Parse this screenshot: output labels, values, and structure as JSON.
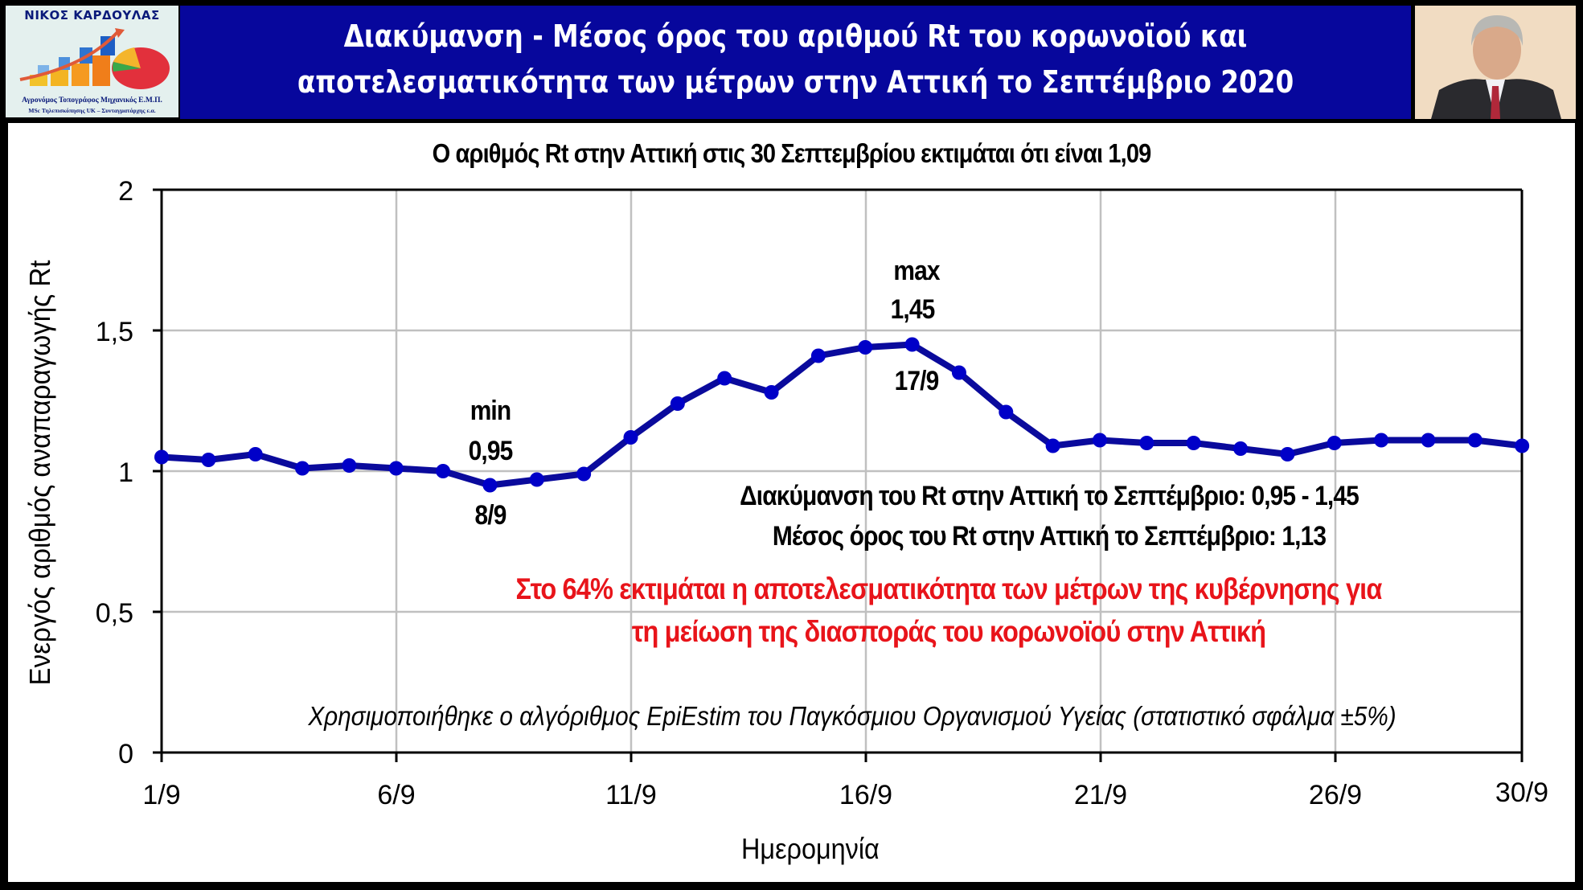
{
  "header": {
    "logo": {
      "name": "ΝΙΚΟΣ ΚΑΡΔΟΥΛΑΣ",
      "subtitle_line1": "Αγρονόμος Τοπογράφος Μηχανικός Ε.Μ.Π.",
      "subtitle_line2": "MSc Τηλεπισκόπησης UK – Συνταγματάρχης ε.α."
    },
    "title_line1": "Διακύμανση - Μέσος όρος του αριθμού Rt του κορωνοϊού και",
    "title_line2": "αποτελεσματικότητα των μέτρων στην Αττική το Σεπτέμβριο 2020",
    "colors": {
      "band": "#07079c",
      "title_text": "#ffffff"
    }
  },
  "chart": {
    "subtitle": "Ο αριθμός Rt στην Αττική στις 30 Σεπτεμβρίου εκτιμάται ότι είναι 1,09",
    "annotations": {
      "min_label": "min",
      "min_value": "0,95",
      "min_date": "8/9",
      "max_label": "max",
      "max_value": "1,45",
      "max_date": "17/9",
      "range_text": "Διακύμανση του Rt στην Αττική το Σεπτέμβριο: 0,95 -  1,45",
      "mean_text": "Μέσος όρος του Rt στην Αττική το Σεπτέμβριο: 1,13",
      "effectiveness_line1": "Στο 64% εκτιμάται η αποτελεσματικότητα των μέτρων της κυβέρνησης για",
      "effectiveness_line2": "τη μείωση της διασποράς του κορωνοϊού στην Αττική",
      "method_note": "Χρησιμοποιήθηκε ο αλγόριθμος EpiEstim του Παγκόσμιου Οργανισμού Υγείας (στατιστικό σφάλμα ±5%)"
    },
    "colors": {
      "line": "#0a0a9c",
      "marker": "#0000c8",
      "highlight_text": "#e8141a",
      "grid": "#c0c0c0"
    }
  },
  "chart_data": {
    "type": "line",
    "title": "Ο αριθμός Rt στην Αττική στις 30 Σεπτεμβρίου εκτιμάται ότι είναι 1,09",
    "xlabel": "Ημερομηνία",
    "ylabel": "Ενεργός αριθμός αναπαραγωγής Rt",
    "ylim": [
      0,
      2
    ],
    "yticks": [
      "0",
      "0,5",
      "1",
      "1,5",
      "2"
    ],
    "xticks": [
      "1/9",
      "6/9",
      "11/9",
      "16/9",
      "21/9",
      "26/9",
      "30/9"
    ],
    "grid": true,
    "legend": null,
    "x": [
      "1/9",
      "2/9",
      "3/9",
      "4/9",
      "5/9",
      "6/9",
      "7/9",
      "8/9",
      "9/9",
      "10/9",
      "11/9",
      "12/9",
      "13/9",
      "14/9",
      "15/9",
      "16/9",
      "17/9",
      "18/9",
      "19/9",
      "20/9",
      "21/9",
      "22/9",
      "23/9",
      "24/9",
      "25/9",
      "26/9",
      "27/9",
      "28/9",
      "29/9",
      "30/9"
    ],
    "series": [
      {
        "name": "Rt Αττική",
        "values": [
          1.05,
          1.04,
          1.06,
          1.01,
          1.02,
          1.01,
          1.0,
          0.95,
          0.97,
          0.99,
          1.12,
          1.24,
          1.33,
          1.28,
          1.41,
          1.44,
          1.45,
          1.35,
          1.21,
          1.09,
          1.11,
          1.1,
          1.1,
          1.08,
          1.06,
          1.1,
          1.11,
          1.11,
          1.11,
          1.09
        ]
      }
    ],
    "annotations": [
      {
        "text": "min 0,95 8/9",
        "x": "8/9",
        "y": 0.95
      },
      {
        "text": "max 1,45 17/9",
        "x": "17/9",
        "y": 1.45
      }
    ],
    "summary": {
      "min": 0.95,
      "max": 1.45,
      "mean": 1.13,
      "last": 1.09,
      "effectiveness_pct": 64
    }
  }
}
